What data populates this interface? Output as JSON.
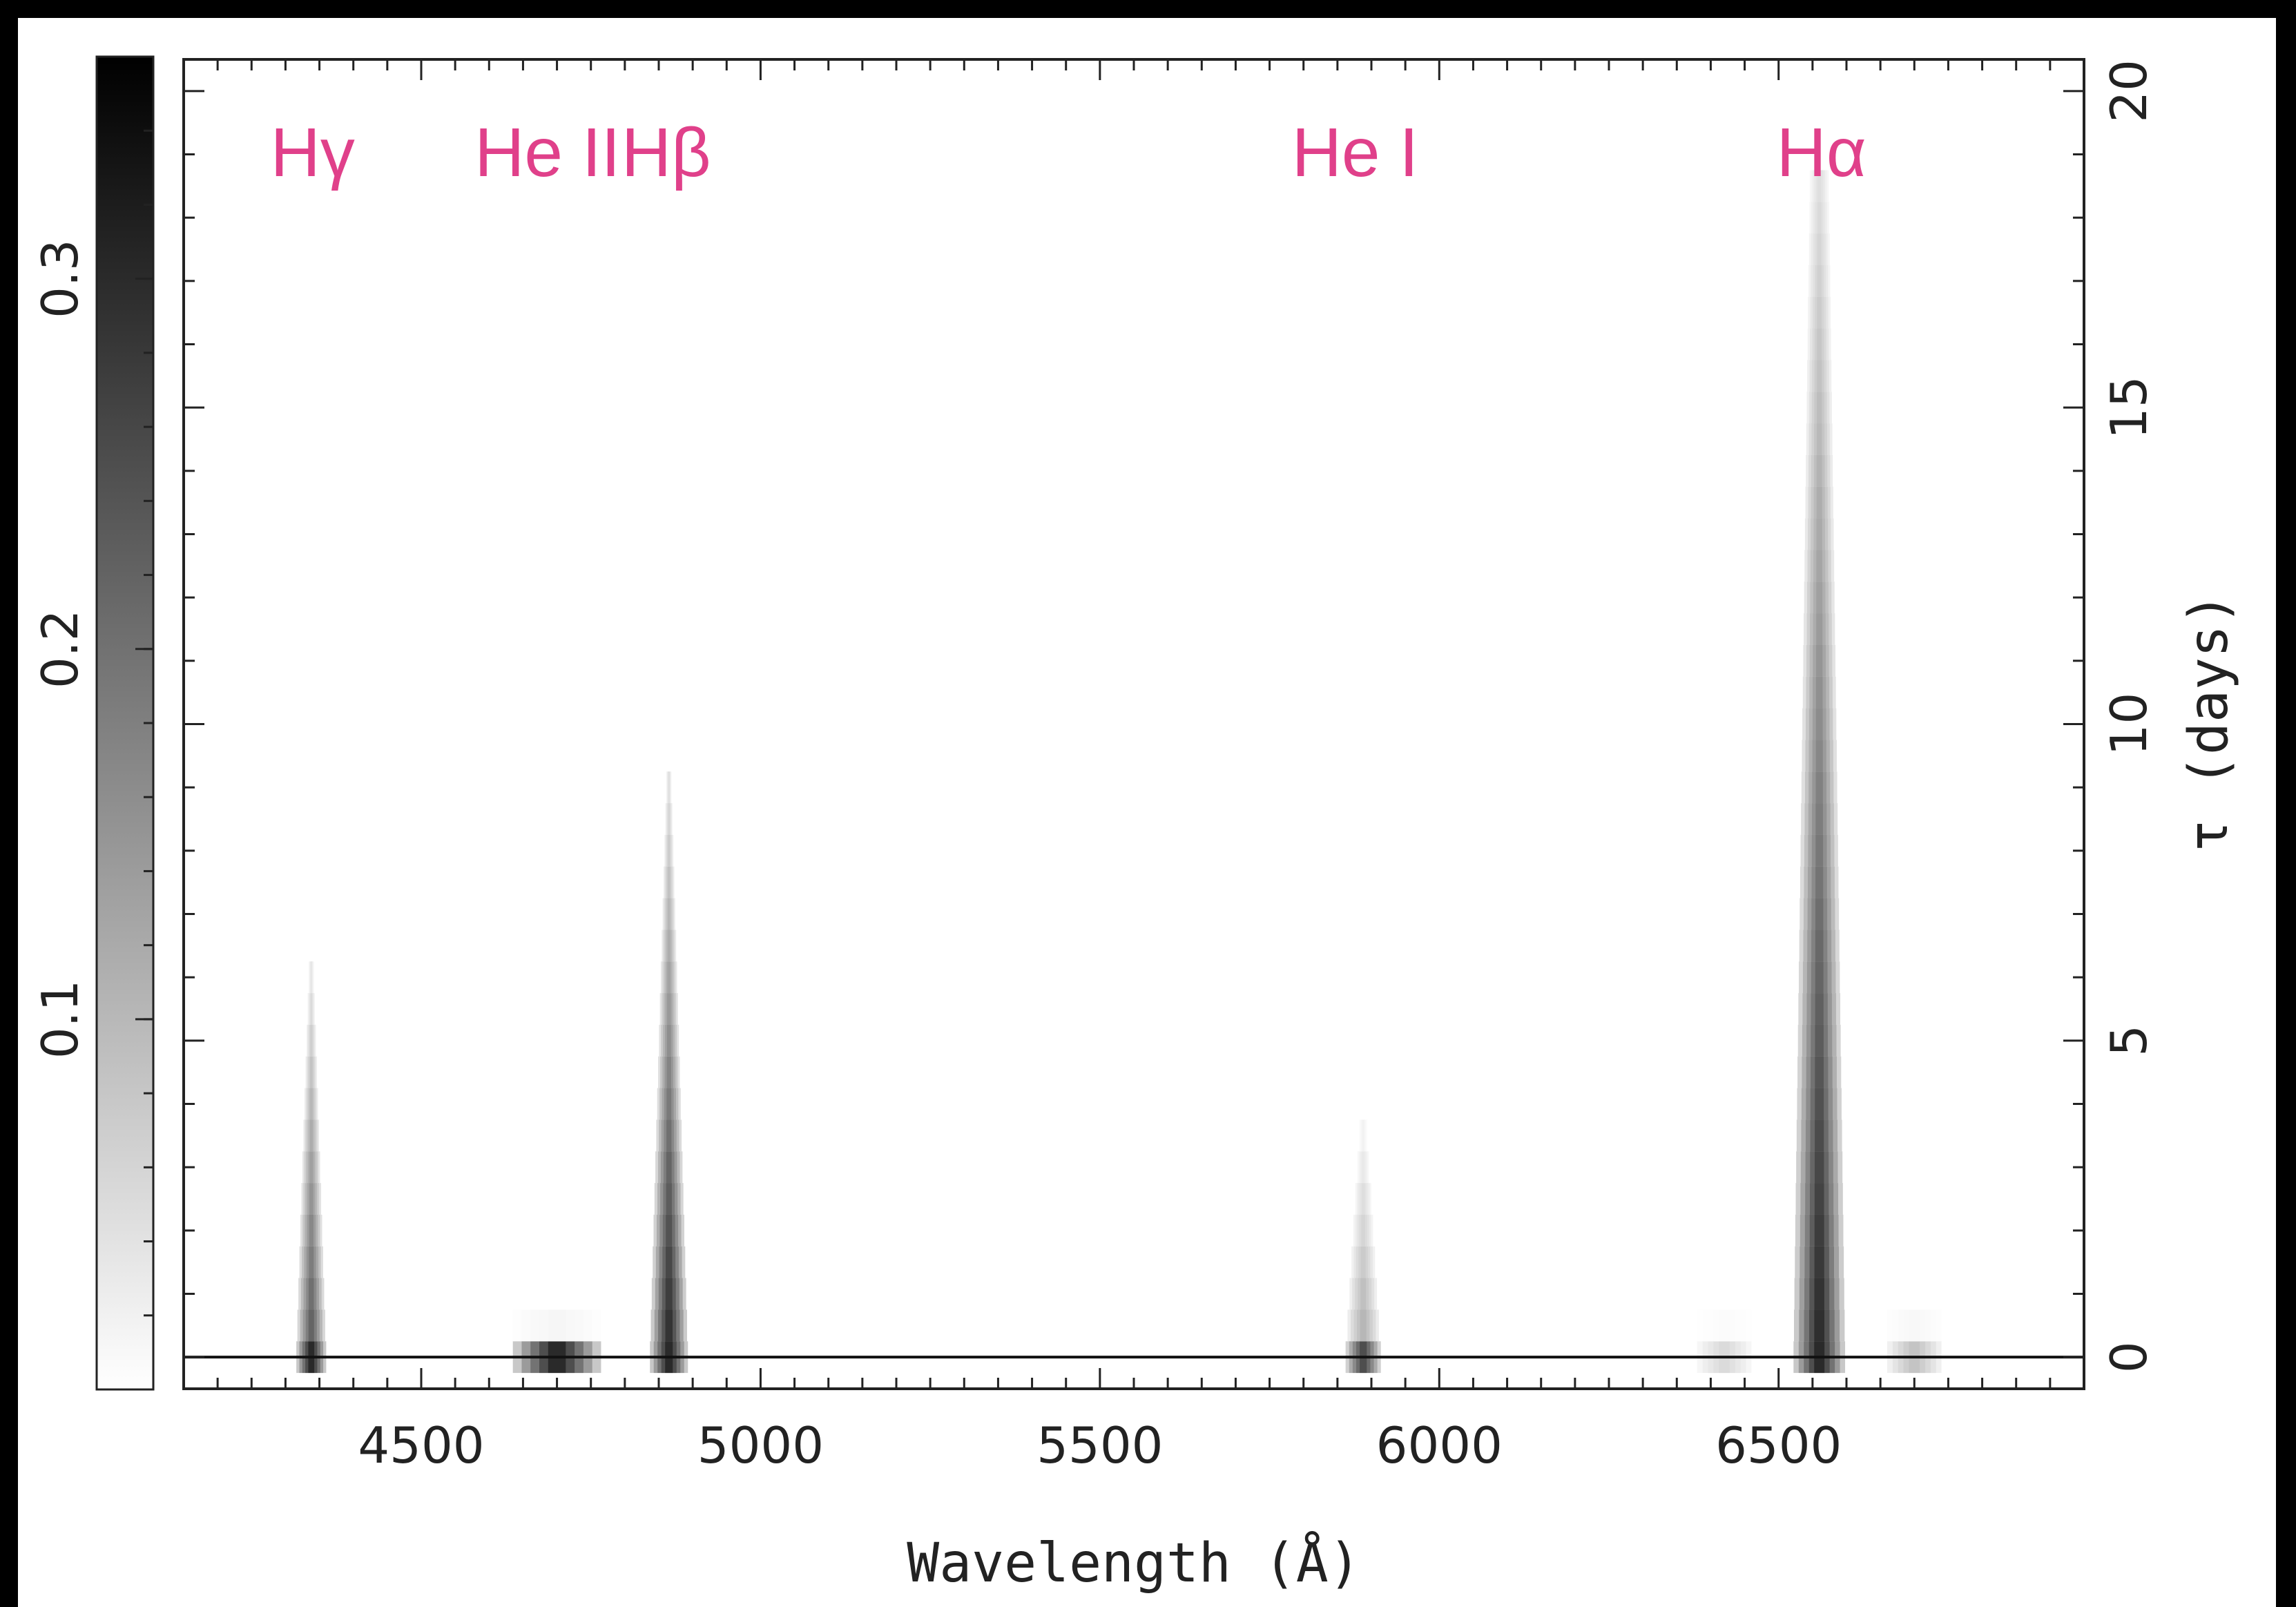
{
  "chart_data": {
    "type": "heatmap",
    "title": "",
    "xlabel": "Wavelength (Å)",
    "ylabel": "τ (days)",
    "xlim": [
      4150,
      6950
    ],
    "ylim": [
      -0.5,
      20.5
    ],
    "x_ticks": [
      4500,
      5000,
      5500,
      6000,
      6500
    ],
    "x_tick_labels": [
      "4500",
      "5000",
      "5500",
      "6000",
      "6500"
    ],
    "y_ticks": [
      0,
      5,
      10,
      15,
      20
    ],
    "y_tick_labels": [
      "0",
      "5",
      "10",
      "15",
      "20"
    ],
    "colorbar": {
      "range": [
        0,
        0.36
      ],
      "ticks": [
        0.1,
        0.2,
        0.3
      ],
      "tick_labels": [
        "0.1",
        "0.2",
        "0.3"
      ],
      "colors": [
        "#ffffff",
        "#000000"
      ]
    },
    "grid": false,
    "baseline_tau": 0,
    "line_labels": [
      {
        "text": "Hγ",
        "wavelength": 4340
      },
      {
        "text": "He II",
        "wavelength": 4686
      },
      {
        "text": "Hβ",
        "wavelength": 4861
      },
      {
        "text": "He I",
        "wavelength": 5876
      },
      {
        "text": "Hα",
        "wavelength": 6563
      }
    ],
    "label_color": "#e0408a",
    "features": [
      {
        "name": "Hγ",
        "center": 4338,
        "tau_max": 6,
        "width_base": 22,
        "width_top": 4,
        "peak": 0.28,
        "base_peak": 0.36
      },
      {
        "name": "He II",
        "center": 4700,
        "tau_max": 0.5,
        "width_base": 65,
        "width_top": 65,
        "peak": 0.1,
        "base_peak": 0.36
      },
      {
        "name": "Hβ",
        "center": 4865,
        "tau_max": 9,
        "width_base": 28,
        "width_top": 4,
        "peak": 0.36,
        "base_peak": 0.36
      },
      {
        "name": "He I",
        "center": 5888,
        "tau_max": 3.5,
        "width_base": 26,
        "width_top": 6,
        "peak": 0.14,
        "base_peak": 0.3
      },
      {
        "name": "Hα",
        "center": 6560,
        "tau_max": 18.5,
        "width_base": 38,
        "width_top": 14,
        "peak": 0.36,
        "base_peak": 0.36
      },
      {
        "name": "Hα-wing-blue",
        "center": 6420,
        "tau_max": 0.5,
        "width_base": 40,
        "width_top": 40,
        "peak": 0.04,
        "base_peak": 0.06
      },
      {
        "name": "Hα-wing-red",
        "center": 6700,
        "tau_max": 0.5,
        "width_base": 40,
        "width_top": 40,
        "peak": 0.08,
        "base_peak": 0.1
      }
    ]
  }
}
